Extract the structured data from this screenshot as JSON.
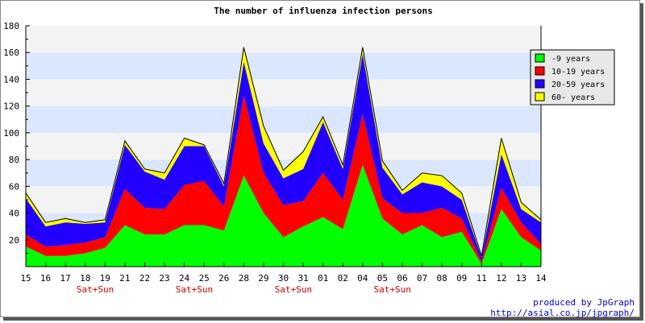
{
  "chart_data": {
    "type": "area",
    "stacked": true,
    "title": "The number of influenza infection persons",
    "categories": [
      "15",
      "16",
      "17",
      "18",
      "19",
      "21",
      "22",
      "23",
      "24",
      "25",
      "26",
      "28",
      "29",
      "30",
      "31",
      "01",
      "02",
      "04",
      "05",
      "06",
      "07",
      "08",
      "09",
      "11",
      "12",
      "13",
      "14"
    ],
    "weekend_label": "Sat+Sun",
    "weekend_after_index": [
      3,
      8,
      13,
      18
    ],
    "series": [
      {
        "name": "-9 years",
        "color": "#00ff00",
        "values": [
          15,
          8,
          8,
          10,
          14,
          31,
          24,
          24,
          31,
          31,
          27,
          68,
          40,
          22,
          30,
          37,
          28,
          76,
          36,
          24,
          31,
          22,
          26,
          2,
          43,
          22,
          12
        ]
      },
      {
        "name": "10-19 years",
        "color": "#ff0000",
        "values": [
          9,
          7,
          8,
          8,
          8,
          27,
          20,
          19,
          30,
          33,
          18,
          60,
          30,
          24,
          19,
          33,
          22,
          38,
          15,
          16,
          9,
          22,
          10,
          2,
          16,
          11,
          5
        ]
      },
      {
        "name": "20-59 years",
        "color": "#2200ff",
        "values": [
          27,
          15,
          17,
          14,
          11,
          33,
          27,
          22,
          29,
          26,
          15,
          25,
          22,
          20,
          24,
          38,
          23,
          45,
          23,
          14,
          23,
          16,
          14,
          3,
          25,
          10,
          16
        ]
      },
      {
        "name": "60- years",
        "color": "#ffff00",
        "values": [
          4,
          3,
          3,
          1,
          2,
          3,
          2,
          5,
          6,
          1,
          2,
          11,
          13,
          6,
          13,
          4,
          3,
          5,
          5,
          3,
          7,
          8,
          5,
          1,
          12,
          5,
          2
        ]
      }
    ],
    "yticks": [
      20,
      40,
      60,
      80,
      100,
      120,
      140,
      160,
      180
    ],
    "ylim": [
      0,
      180
    ],
    "grid": "horizontal bands",
    "band_colors": [
      "#f3f3f3",
      "#dbe6ff"
    ],
    "legend_position": "top-right"
  },
  "credits": {
    "line1": "produced by JpGraph",
    "line2": "http://asial.co.jp/jpgraph/"
  }
}
